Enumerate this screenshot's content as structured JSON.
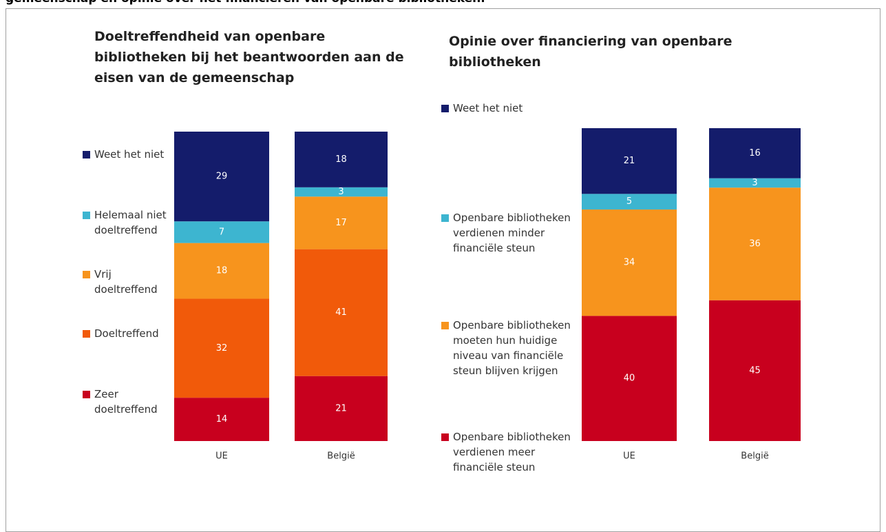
{
  "page_title": "gemeenschap en opinie over het financieren van openbare bibliotheken.",
  "chart_data": [
    {
      "type": "bar",
      "stacked": true,
      "title": "Doeltreffendheid van openbare bibliotheken bij het beantwoorden aan de eisen van de gemeenschap",
      "categories": [
        "UE",
        "België"
      ],
      "ylim": [
        0,
        100
      ],
      "series": [
        {
          "name": "Zeer doeltreffend",
          "color": "#c8001e",
          "values": [
            14,
            21
          ]
        },
        {
          "name": "Doeltreffend",
          "color": "#f15a0a",
          "values": [
            32,
            41
          ]
        },
        {
          "name": "Vrij doeltreffend",
          "color": "#f7941d",
          "values": [
            18,
            17
          ]
        },
        {
          "name": "Helemaal niet doeltreffend",
          "color": "#3db5d0",
          "values": [
            7,
            3
          ]
        },
        {
          "name": "Weet het niet",
          "color": "#141c6b",
          "values": [
            29,
            18
          ]
        }
      ]
    },
    {
      "type": "bar",
      "stacked": true,
      "title": "Opinie over financiering van openbare bibliotheken",
      "categories": [
        "UE",
        "België"
      ],
      "ylim": [
        0,
        100
      ],
      "series": [
        {
          "name": "Openbare bibliotheken verdienen meer financiële steun",
          "color": "#c8001e",
          "values": [
            40,
            45
          ]
        },
        {
          "name": "Openbare bibliotheken moeten hun huidige niveau van financiële steun blijven krijgen",
          "color": "#f7941d",
          "values": [
            34,
            36
          ]
        },
        {
          "name": "Openbare bibliotheken verdienen minder financiële steun",
          "color": "#3db5d0",
          "values": [
            5,
            3
          ]
        },
        {
          "name": "Weet het niet",
          "color": "#141c6b",
          "values": [
            21,
            16
          ]
        }
      ]
    }
  ]
}
